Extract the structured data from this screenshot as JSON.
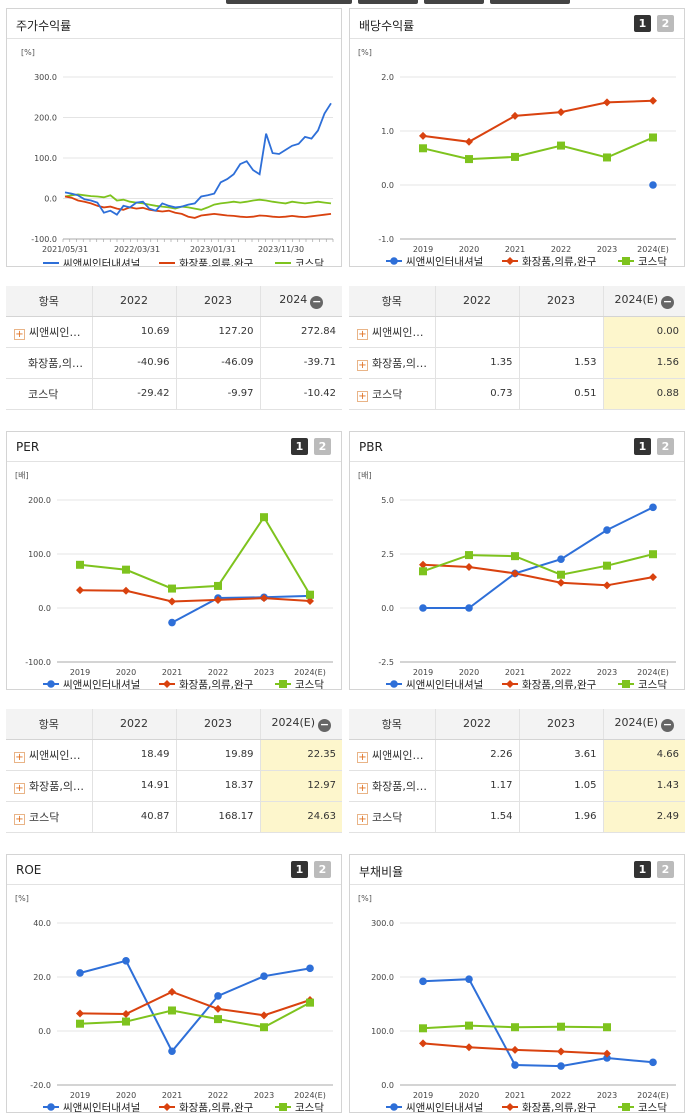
{
  "panels": [
    {
      "id": "p1",
      "title": "주가수익률",
      "pager": false
    },
    {
      "id": "p2",
      "title": "배당수익률",
      "pager": true
    },
    {
      "id": "p3",
      "title": "PER",
      "pager": true
    },
    {
      "id": "p4",
      "title": "PBR",
      "pager": true
    },
    {
      "id": "p5",
      "title": "ROE",
      "pager": true
    },
    {
      "id": "p6",
      "title": "부채비율",
      "pager": true
    }
  ],
  "pager_labels": [
    "1",
    "2"
  ],
  "legend_names": [
    "씨앤씨인터내셔널",
    "화장품,의류,완구",
    "코스닥"
  ],
  "colors": {
    "blue": "#2e6fd8",
    "red": "#d9420f",
    "green": "#7ec31e"
  },
  "chart_data": [
    {
      "type": "line",
      "title": "주가수익률",
      "ylabel": "[%]",
      "ylim": [
        -100,
        300
      ],
      "yticks": [
        "300.0",
        "200.0",
        "100.0",
        "0.0",
        "-100.0"
      ],
      "xticks": [
        "2021/05/31",
        "2022/03/31",
        "2023/01/31",
        "2023/11/30"
      ],
      "series": [
        {
          "name": "씨앤씨인터내셔널",
          "color": "blue",
          "values": [
            15,
            12,
            8,
            -2,
            -5,
            -10,
            -35,
            -30,
            -40,
            -18,
            -22,
            -10,
            -8,
            -25,
            -30,
            -12,
            -18,
            -22,
            -20,
            -15,
            -12,
            5,
            8,
            12,
            40,
            48,
            60,
            85,
            92,
            70,
            60,
            160,
            112,
            110,
            120,
            130,
            135,
            152,
            148,
            168,
            210,
            235
          ]
        },
        {
          "name": "화장품,의류,완구",
          "color": "red",
          "values": [
            5,
            2,
            -5,
            -8,
            -12,
            -18,
            -22,
            -20,
            -25,
            -28,
            -22,
            -25,
            -23,
            -28,
            -30,
            -32,
            -30,
            -35,
            -38,
            -45,
            -48,
            -42,
            -40,
            -38,
            -40,
            -42,
            -43,
            -45,
            -46,
            -45,
            -42,
            -43,
            -45,
            -46,
            -45,
            -43,
            -45,
            -46,
            -44,
            -42,
            -40,
            -38
          ]
        },
        {
          "name": "코스닥",
          "color": "green",
          "values": [
            5,
            8,
            10,
            8,
            6,
            5,
            3,
            8,
            -5,
            -3,
            -8,
            -10,
            -12,
            -15,
            -18,
            -20,
            -22,
            -25,
            -20,
            -22,
            -25,
            -28,
            -22,
            -15,
            -12,
            -10,
            -8,
            -10,
            -8,
            -5,
            -3,
            -5,
            -8,
            -10,
            -12,
            -8,
            -10,
            -12,
            -10,
            -8,
            -10,
            -12
          ]
        }
      ]
    },
    {
      "type": "line",
      "title": "배당수익률",
      "ylabel": "[%]",
      "ylim": [
        -1,
        2
      ],
      "yticks": [
        "2.0",
        "1.0",
        "0.0",
        "-1.0"
      ],
      "categories": [
        "2019",
        "2020",
        "2021",
        "2022",
        "2023",
        "2024(E)"
      ],
      "series": [
        {
          "name": "씨앤씨인터내셔널",
          "color": "blue",
          "values": [
            null,
            null,
            null,
            null,
            null,
            0.0
          ]
        },
        {
          "name": "화장품,의류,완구",
          "color": "red",
          "values": [
            0.91,
            0.8,
            1.28,
            1.35,
            1.53,
            1.56
          ]
        },
        {
          "name": "코스닥",
          "color": "green",
          "values": [
            0.68,
            0.48,
            0.52,
            0.73,
            0.51,
            0.88
          ]
        }
      ]
    },
    {
      "type": "line",
      "title": "PER",
      "ylabel": "[배]",
      "ylim": [
        -100,
        200
      ],
      "yticks": [
        "200.0",
        "100.0",
        "0.0",
        "-100.0"
      ],
      "categories": [
        "2019",
        "2020",
        "2021",
        "2022",
        "2023",
        "2024(E)"
      ],
      "series": [
        {
          "name": "씨앤씨인터내셔널",
          "color": "blue",
          "values": [
            null,
            null,
            -27,
            18.49,
            19.89,
            22.35
          ]
        },
        {
          "name": "화장품,의류,완구",
          "color": "red",
          "values": [
            33,
            32,
            12,
            14.91,
            18.37,
            12.97
          ]
        },
        {
          "name": "코스닥",
          "color": "green",
          "values": [
            80,
            71,
            36,
            40.87,
            168.17,
            24.63
          ]
        }
      ]
    },
    {
      "type": "line",
      "title": "PBR",
      "ylabel": "[배]",
      "ylim": [
        -2.5,
        5
      ],
      "yticks": [
        "5.0",
        "2.5",
        "0.0",
        "-2.5"
      ],
      "categories": [
        "2019",
        "2020",
        "2021",
        "2022",
        "2023",
        "2024(E)"
      ],
      "series": [
        {
          "name": "씨앤씨인터내셔널",
          "color": "blue",
          "values": [
            0.0,
            0.0,
            1.6,
            2.26,
            3.61,
            4.66
          ]
        },
        {
          "name": "화장품,의류,완구",
          "color": "red",
          "values": [
            2.0,
            1.9,
            1.6,
            1.17,
            1.05,
            1.43
          ]
        },
        {
          "name": "코스닥",
          "color": "green",
          "values": [
            1.7,
            2.45,
            2.4,
            1.54,
            1.96,
            2.49
          ]
        }
      ]
    },
    {
      "type": "line",
      "title": "ROE",
      "ylabel": "[%]",
      "ylim": [
        -20,
        40
      ],
      "yticks": [
        "40.0",
        "20.0",
        "0.0",
        "-20.0"
      ],
      "categories": [
        "2019",
        "2020",
        "2021",
        "2022",
        "2023",
        "2024(E)"
      ],
      "series": [
        {
          "name": "씨앤씨인터내셔널",
          "color": "blue",
          "values": [
            21.5,
            26,
            -7.5,
            13,
            20.3,
            23.2
          ]
        },
        {
          "name": "화장품,의류,완구",
          "color": "red",
          "values": [
            6.5,
            6.3,
            14.5,
            8.2,
            5.8,
            11.5
          ]
        },
        {
          "name": "코스닥",
          "color": "green",
          "values": [
            2.7,
            3.5,
            7.6,
            4.4,
            1.4,
            10.5
          ]
        }
      ]
    },
    {
      "type": "line",
      "title": "부채비율",
      "ylabel": "[%]",
      "ylim": [
        0,
        300
      ],
      "yticks": [
        "300.0",
        "200.0",
        "100.0",
        "0.0"
      ],
      "categories": [
        "2019",
        "2020",
        "2021",
        "2022",
        "2023",
        "2024(E)"
      ],
      "series": [
        {
          "name": "씨앤씨인터내셔널",
          "color": "blue",
          "values": [
            192,
            196,
            37,
            35,
            50,
            42
          ]
        },
        {
          "name": "화장품,의류,완구",
          "color": "red",
          "values": [
            77,
            70,
            65,
            62,
            58,
            null
          ]
        },
        {
          "name": "코스닥",
          "color": "green",
          "values": [
            105,
            110,
            107,
            108,
            107,
            null
          ]
        }
      ]
    }
  ],
  "tables": [
    {
      "headers": [
        "항목",
        "2022",
        "2023",
        "2024"
      ],
      "minus_on_last": true,
      "highlight_last": false,
      "rows": [
        {
          "label": "씨앤씨인…",
          "plus": true,
          "values": [
            "10.69",
            "127.20",
            "272.84"
          ]
        },
        {
          "label": "화장품,의…",
          "plus": false,
          "values": [
            "-40.96",
            "-46.09",
            "-39.71"
          ]
        },
        {
          "label": "코스닥",
          "plus": false,
          "values": [
            "-29.42",
            "-9.97",
            "-10.42"
          ]
        }
      ]
    },
    {
      "headers": [
        "항목",
        "2022",
        "2023",
        "2024(E)"
      ],
      "minus_on_last": true,
      "highlight_last": true,
      "rows": [
        {
          "label": "씨앤씨인…",
          "plus": true,
          "values": [
            "",
            "",
            "0.00"
          ]
        },
        {
          "label": "화장품,의…",
          "plus": true,
          "values": [
            "1.35",
            "1.53",
            "1.56"
          ]
        },
        {
          "label": "코스닥",
          "plus": true,
          "values": [
            "0.73",
            "0.51",
            "0.88"
          ]
        }
      ]
    },
    {
      "headers": [
        "항목",
        "2022",
        "2023",
        "2024(E)"
      ],
      "minus_on_last": true,
      "highlight_last": true,
      "rows": [
        {
          "label": "씨앤씨인…",
          "plus": true,
          "values": [
            "18.49",
            "19.89",
            "22.35"
          ]
        },
        {
          "label": "화장품,의…",
          "plus": true,
          "values": [
            "14.91",
            "18.37",
            "12.97"
          ]
        },
        {
          "label": "코스닥",
          "plus": true,
          "values": [
            "40.87",
            "168.17",
            "24.63"
          ]
        }
      ]
    },
    {
      "headers": [
        "항목",
        "2022",
        "2023",
        "2024(E)"
      ],
      "minus_on_last": true,
      "highlight_last": true,
      "rows": [
        {
          "label": "씨앤씨인…",
          "plus": true,
          "values": [
            "2.26",
            "3.61",
            "4.66"
          ]
        },
        {
          "label": "화장품,의…",
          "plus": true,
          "values": [
            "1.17",
            "1.05",
            "1.43"
          ]
        },
        {
          "label": "코스닥",
          "plus": true,
          "values": [
            "1.54",
            "1.96",
            "2.49"
          ]
        }
      ]
    }
  ]
}
